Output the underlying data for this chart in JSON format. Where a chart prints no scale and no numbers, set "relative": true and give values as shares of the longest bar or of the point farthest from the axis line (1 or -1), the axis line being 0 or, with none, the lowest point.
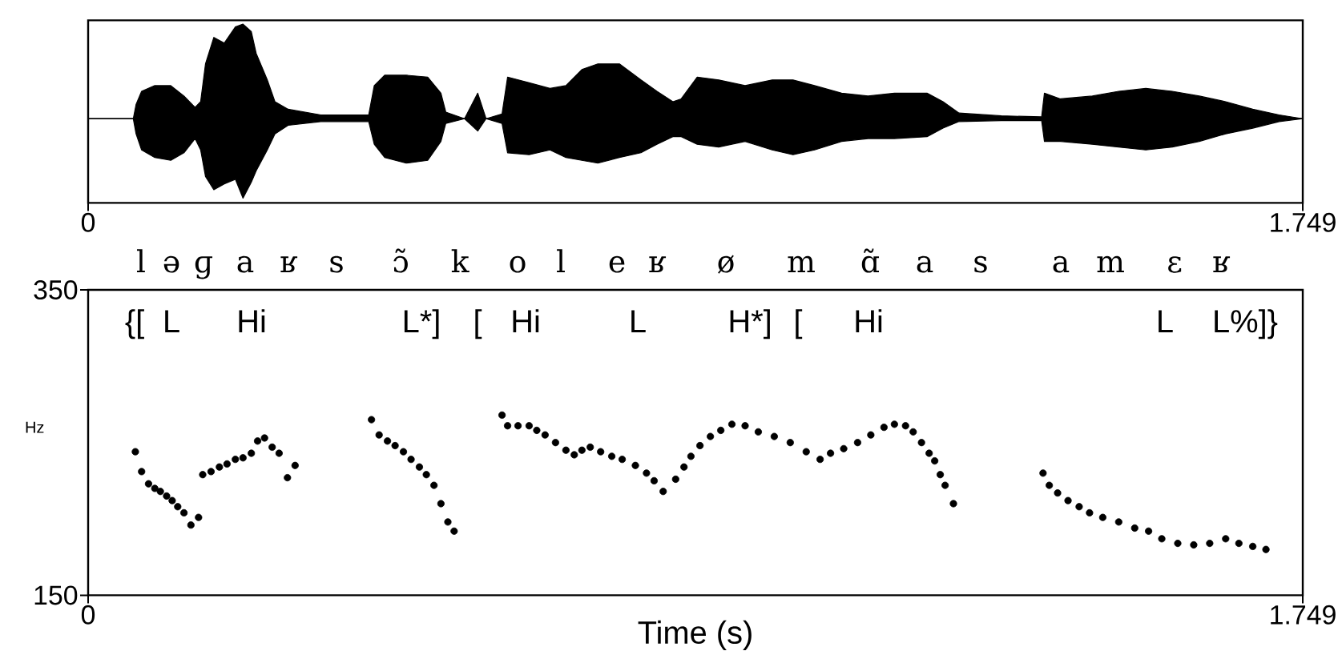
{
  "chart_data": [
    {
      "type": "area",
      "relative": true,
      "x": [
        0,
        0.065,
        0.069,
        0.077,
        0.096,
        0.119,
        0.138,
        0.154,
        0.162,
        0.169,
        0.181,
        0.196,
        0.212,
        0.223,
        0.235,
        0.242,
        0.258,
        0.269,
        0.288,
        0.335,
        0.404,
        0.412,
        0.427,
        0.458,
        0.489,
        0.508,
        0.515,
        0.542,
        0.561,
        0.573,
        0.596,
        0.604,
        0.635,
        0.665,
        0.688,
        0.711,
        0.734,
        0.765,
        0.796,
        0.819,
        0.842,
        0.854,
        0.877,
        0.908,
        0.946,
        0.985,
        1.015,
        1.046,
        1.085,
        1.123,
        1.161,
        1.208,
        1.231,
        1.254,
        1.315,
        1.373,
        1.377,
        1.4,
        1.446,
        1.484,
        1.523,
        1.561,
        1.6,
        1.638,
        1.677,
        1.715,
        1.749
      ],
      "series": [
        {
          "color": "#000000",
          "values": [
            0,
            0,
            0.15,
            0.29,
            0.35,
            0.35,
            0.24,
            0.12,
            0.18,
            0.58,
            0.86,
            0.8,
            0.97,
            1,
            0.92,
            0.69,
            0.41,
            0.18,
            0.1,
            0.04,
            0.04,
            0.35,
            0.46,
            0.46,
            0.44,
            0.27,
            0.07,
            0,
            0.27,
            0,
            0.05,
            0.44,
            0.38,
            0.32,
            0.35,
            0.52,
            0.58,
            0.58,
            0.41,
            0.29,
            0.18,
            0.21,
            0.44,
            0.41,
            0.35,
            0.41,
            0.41,
            0.35,
            0.27,
            0.24,
            0.27,
            0.27,
            0.18,
            0.06,
            0.03,
            0.02,
            0.27,
            0.21,
            0.24,
            0.29,
            0.32,
            0.29,
            0.24,
            0.18,
            0.1,
            0.04,
            0
          ]
        },
        {
          "color": "#000000",
          "values": [
            0,
            0,
            -0.16,
            -0.33,
            -0.41,
            -0.44,
            -0.36,
            -0.21,
            -0.33,
            -0.61,
            -0.75,
            -0.69,
            -0.64,
            -0.84,
            -0.67,
            -0.55,
            -0.33,
            -0.16,
            -0.07,
            -0.03,
            -0.03,
            -0.27,
            -0.41,
            -0.47,
            -0.44,
            -0.24,
            -0.05,
            0,
            -0.13,
            0,
            -0.05,
            -0.36,
            -0.38,
            -0.33,
            -0.41,
            -0.44,
            -0.47,
            -0.41,
            -0.36,
            -0.27,
            -0.19,
            -0.19,
            -0.27,
            -0.3,
            -0.24,
            -0.33,
            -0.38,
            -0.33,
            -0.24,
            -0.21,
            -0.21,
            -0.19,
            -0.1,
            -0.03,
            -0.02,
            -0.02,
            -0.24,
            -0.24,
            -0.27,
            -0.3,
            -0.33,
            -0.3,
            -0.24,
            -0.16,
            -0.1,
            -0.03,
            0
          ]
        }
      ],
      "xlim": [
        0,
        1.749
      ],
      "xticks": [
        0,
        1.749
      ],
      "annotations": [
        "l",
        "ə",
        "ɡ",
        "a",
        "ʁ",
        "s",
        "ɔ̃",
        "k",
        "o",
        "l",
        "e",
        "ʁ",
        "ø",
        "m",
        "ɑ̃",
        "a",
        "s",
        "a",
        "m",
        "ɛ",
        "ʁ"
      ]
    },
    {
      "type": "scatter",
      "marker": "circle",
      "color": "#000000",
      "x": [
        0.068,
        0.077,
        0.087,
        0.096,
        0.104,
        0.113,
        0.121,
        0.129,
        0.138,
        0.148,
        0.159,
        0.165,
        0.177,
        0.189,
        0.2,
        0.212,
        0.223,
        0.235,
        0.244,
        0.254,
        0.265,
        0.275,
        0.287,
        0.298,
        0.408,
        0.419,
        0.431,
        0.442,
        0.454,
        0.465,
        0.477,
        0.487,
        0.498,
        0.508,
        0.518,
        0.527,
        0.596,
        0.604,
        0.619,
        0.635,
        0.646,
        0.658,
        0.673,
        0.688,
        0.7,
        0.711,
        0.723,
        0.738,
        0.754,
        0.769,
        0.788,
        0.804,
        0.815,
        0.828,
        0.846,
        0.858,
        0.868,
        0.881,
        0.896,
        0.911,
        0.927,
        0.946,
        0.965,
        0.988,
        1.011,
        1.034,
        1.054,
        1.069,
        1.088,
        1.108,
        1.127,
        1.146,
        1.161,
        1.177,
        1.188,
        1.2,
        1.211,
        1.219,
        1.227,
        1.234,
        1.246,
        1.375,
        1.384,
        1.396,
        1.411,
        1.427,
        1.442,
        1.461,
        1.484,
        1.507,
        1.527,
        1.546,
        1.569,
        1.592,
        1.615,
        1.638,
        1.657,
        1.677,
        1.696
      ],
      "values": [
        244,
        231,
        223,
        220,
        218,
        215,
        212,
        208,
        204,
        196,
        201,
        229,
        231,
        234,
        236,
        239,
        240,
        243,
        251,
        253,
        247,
        243,
        227,
        235,
        265,
        255,
        251,
        248,
        244,
        239,
        234,
        229,
        222,
        210,
        198,
        192,
        268,
        261,
        261,
        261,
        258,
        255,
        250,
        245,
        242,
        245,
        247,
        244,
        241,
        239,
        235,
        230,
        225,
        218,
        226,
        234,
        241,
        248,
        254,
        258,
        262,
        261,
        257,
        254,
        250,
        244,
        239,
        243,
        246,
        250,
        255,
        260,
        262,
        261,
        257,
        250,
        243,
        238,
        229,
        222,
        210,
        230,
        222,
        217,
        212,
        208,
        204,
        201,
        198,
        194,
        192,
        187,
        184,
        183,
        184,
        187,
        184,
        182,
        180
      ],
      "xlim": [
        0,
        1.749
      ],
      "xticks": [
        0,
        1.749
      ],
      "ylim": [
        150,
        350
      ],
      "yticks": [
        150,
        350
      ],
      "xlabel": "Time (s)",
      "ylabel": "Hz",
      "annotations": [
        "{[",
        "L",
        "Hi",
        "L*]",
        "[",
        "Hi",
        "L",
        "H*]",
        "[",
        "Hi",
        "L",
        "L%]}"
      ]
    }
  ]
}
